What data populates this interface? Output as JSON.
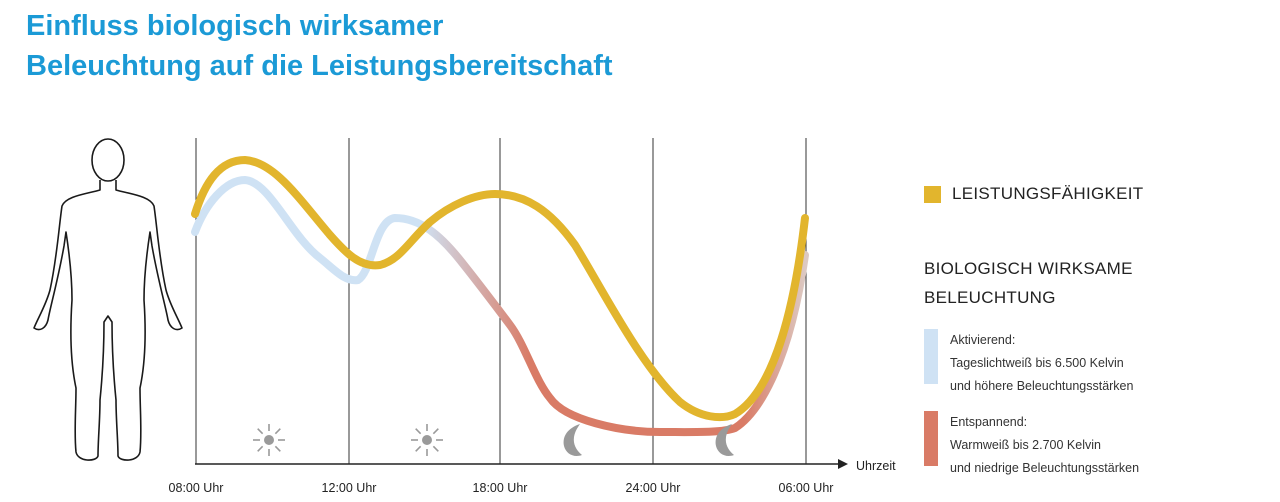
{
  "title": {
    "line1": "Einfluss biologisch wirksamer",
    "line2": "Beleuchtung auf die Leistungsbereitschaft"
  },
  "colors": {
    "title": "#1b9ad6",
    "performance": "#e2b52d",
    "activating": "#cfe2f4",
    "relaxing": "#d97b66",
    "axis": "#222222",
    "icon": "#9a9a9a"
  },
  "icons": [
    "person-silhouette-icon",
    "sun-icon",
    "sun-icon",
    "moon-icon",
    "moon-icon"
  ],
  "chart_data": {
    "type": "line",
    "x_axis": {
      "label": "Uhrzeit",
      "ticks": [
        "08:00 Uhr",
        "12:00 Uhr",
        "18:00 Uhr",
        "24:00 Uhr",
        "06:00 Uhr"
      ]
    },
    "y_axis": {
      "ticks_shown": false
    },
    "grid": "vertical lines at each tick",
    "legend": {
      "placement": "right"
    },
    "series": [
      {
        "name": "LEISTUNGSFÄHIGKEIT",
        "color": "#e2b52d"
      },
      {
        "name": "BIOLOGISCH WIRKSAME BELEUCHTUNG",
        "color_start": "#cfe2f4",
        "color_end": "#d97b66"
      }
    ]
  },
  "legend": {
    "performance": "LEISTUNGSFÄHIGKEIT",
    "bio_line1": "BIOLOGISCH WIRKSAME",
    "bio_line2": "BELEUCHTUNG",
    "activating": {
      "heading": "Aktivierend:",
      "line1": "Tageslichtweiß bis 6.500 Kelvin",
      "line2": "und höhere Beleuchtungsstärken"
    },
    "relaxing": {
      "heading": "Entspannend:",
      "line1": "Warmweiß bis 2.700 Kelvin",
      "line2": "und niedrige Beleuchtungsstärken"
    }
  }
}
